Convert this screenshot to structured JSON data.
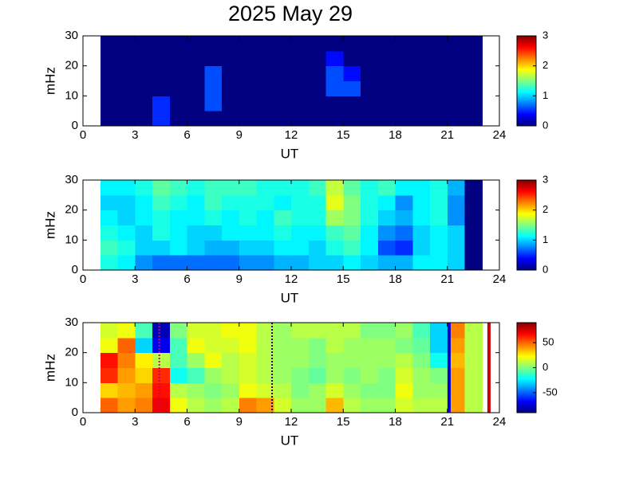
{
  "title": "2025 May 29",
  "chart_data": [
    {
      "type": "heatmap",
      "colormap": "jet",
      "xlabel": "UT",
      "ylabel": "mHz",
      "xlim": [
        0,
        24
      ],
      "xticks": [
        0,
        3,
        6,
        9,
        12,
        15,
        18,
        21,
        24
      ],
      "ylim": [
        0,
        30
      ],
      "yticks": [
        0,
        10,
        20,
        30
      ],
      "x_edges": [
        1,
        2,
        3,
        4,
        5,
        6,
        7,
        8,
        9,
        10,
        11,
        12,
        13,
        14,
        15,
        16,
        17,
        18,
        19,
        20,
        21,
        22,
        23
      ],
      "y_edges": [
        0,
        5,
        10,
        15,
        20,
        25,
        30
      ],
      "clim": [
        0,
        3
      ],
      "cticks": [
        0,
        1,
        2,
        3
      ],
      "values": [
        [
          0,
          0,
          0,
          0.5,
          0,
          0,
          0,
          0,
          0,
          0,
          0,
          0,
          0,
          0,
          0,
          0,
          0,
          0,
          0,
          0,
          0,
          0
        ],
        [
          0,
          0,
          0,
          0.5,
          0,
          0,
          0.6,
          0,
          0,
          0,
          0,
          0,
          0,
          0,
          0,
          0,
          0,
          0,
          0,
          0,
          0,
          0
        ],
        [
          0,
          0,
          0,
          0,
          0,
          0,
          0.6,
          0,
          0,
          0,
          0,
          0,
          0,
          0.6,
          0.6,
          0,
          0,
          0,
          0,
          0,
          0,
          0
        ],
        [
          0,
          0,
          0,
          0,
          0,
          0,
          0.6,
          0,
          0,
          0,
          0,
          0,
          0,
          0.6,
          0.4,
          0,
          0,
          0,
          0,
          0,
          0,
          0
        ],
        [
          0,
          0,
          0,
          0,
          0,
          0,
          0,
          0,
          0,
          0,
          0,
          0,
          0,
          0.4,
          0,
          0,
          0,
          0,
          0,
          0,
          0,
          0
        ],
        [
          0,
          0,
          0,
          0,
          0,
          0,
          0,
          0,
          0,
          0,
          0,
          0,
          0,
          0,
          0,
          0,
          0,
          0,
          0,
          0,
          0,
          0
        ]
      ]
    },
    {
      "type": "heatmap",
      "colormap": "jet",
      "xlabel": "UT",
      "ylabel": "mHz",
      "xlim": [
        0,
        24
      ],
      "xticks": [
        0,
        3,
        6,
        9,
        12,
        15,
        18,
        21,
        24
      ],
      "ylim": [
        0,
        30
      ],
      "yticks": [
        0,
        10,
        20,
        30
      ],
      "x_edges": [
        1,
        2,
        3,
        4,
        5,
        6,
        7,
        8,
        9,
        10,
        11,
        12,
        13,
        14,
        15,
        16,
        17,
        18,
        19,
        20,
        21,
        22,
        23
      ],
      "y_edges": [
        0,
        5,
        10,
        15,
        20,
        25,
        30
      ],
      "clim": [
        0,
        3
      ],
      "cticks": [
        0,
        1,
        2,
        3
      ],
      "values": [
        [
          1.2,
          1.1,
          0.8,
          0.7,
          0.7,
          0.7,
          0.7,
          0.7,
          0.8,
          0.8,
          0.9,
          0.9,
          1.0,
          1.0,
          1.1,
          1.0,
          0.9,
          0.9,
          1.1,
          1.1,
          1.0,
          0
        ],
        [
          1.3,
          1.2,
          1.0,
          1.0,
          1.1,
          1.0,
          0.9,
          0.9,
          1.0,
          1.0,
          1.1,
          1.1,
          1.0,
          1.2,
          1.3,
          1.1,
          0.6,
          0.5,
          1.0,
          1.1,
          1.0,
          0
        ],
        [
          1.2,
          1.1,
          1.0,
          1.2,
          1.1,
          1.0,
          1.0,
          1.1,
          1.1,
          1.1,
          1.2,
          1.1,
          1.1,
          1.3,
          1.4,
          1.1,
          0.8,
          0.7,
          1.0,
          1.1,
          1.0,
          0
        ],
        [
          1.1,
          1.0,
          1.1,
          1.2,
          1.1,
          1.1,
          1.2,
          1.1,
          1.2,
          1.1,
          1.3,
          1.2,
          1.2,
          1.6,
          1.5,
          1.2,
          1.0,
          0.9,
          1.1,
          1.2,
          0.8,
          0
        ],
        [
          1.0,
          1.0,
          1.1,
          1.3,
          1.2,
          1.1,
          1.3,
          1.2,
          1.2,
          1.2,
          1.1,
          1.2,
          1.2,
          1.8,
          1.5,
          1.2,
          1.1,
          0.8,
          1.1,
          1.2,
          0.8,
          0
        ],
        [
          1.1,
          1.1,
          1.2,
          1.4,
          1.3,
          1.2,
          1.3,
          1.3,
          1.3,
          1.2,
          1.2,
          1.2,
          1.3,
          1.7,
          1.4,
          1.2,
          1.3,
          1.1,
          1.1,
          1.2,
          0.9,
          0
        ]
      ]
    },
    {
      "type": "heatmap",
      "colormap": "jet",
      "xlabel": "UT",
      "ylabel": "mHz",
      "xlim": [
        0,
        24
      ],
      "xticks": [
        0,
        3,
        6,
        9,
        12,
        15,
        18,
        21,
        24
      ],
      "ylim": [
        0,
        30
      ],
      "yticks": [
        0,
        10,
        20,
        30
      ],
      "x_edges": [
        1,
        2,
        3,
        4,
        5,
        6,
        7,
        8,
        9,
        10,
        11,
        12,
        13,
        14,
        15,
        16,
        17,
        18,
        19,
        20,
        21,
        22,
        23
      ],
      "y_edges": [
        0,
        5,
        10,
        15,
        20,
        25,
        30
      ],
      "clim": [
        -90,
        90
      ],
      "cticks": [
        -50,
        0,
        50
      ],
      "values": [
        [
          50,
          40,
          45,
          70,
          20,
          10,
          5,
          10,
          45,
          40,
          15,
          5,
          5,
          35,
          10,
          5,
          5,
          15,
          10,
          10,
          40,
          10
        ],
        [
          30,
          35,
          40,
          65,
          10,
          5,
          0,
          5,
          20,
          15,
          10,
          0,
          5,
          15,
          5,
          0,
          0,
          20,
          5,
          5,
          40,
          10
        ],
        [
          60,
          40,
          30,
          60,
          -20,
          -10,
          5,
          10,
          15,
          10,
          5,
          0,
          -5,
          5,
          0,
          5,
          0,
          15,
          5,
          0,
          40,
          10
        ],
        [
          65,
          45,
          25,
          10,
          -10,
          5,
          20,
          10,
          15,
          10,
          5,
          5,
          0,
          5,
          5,
          5,
          5,
          10,
          0,
          -20,
          35,
          10
        ],
        [
          20,
          50,
          -30,
          -70,
          -10,
          20,
          15,
          15,
          20,
          10,
          5,
          5,
          0,
          10,
          5,
          5,
          5,
          0,
          -5,
          -30,
          40,
          10
        ],
        [
          15,
          20,
          -10,
          -80,
          0,
          15,
          15,
          20,
          20,
          10,
          5,
          10,
          10,
          10,
          10,
          0,
          0,
          5,
          -10,
          -30,
          45,
          10
        ]
      ],
      "vlines": [
        {
          "x": 4.4,
          "color": "#cc0066",
          "style": "dotted"
        },
        {
          "x": 10.9,
          "color": "#000080",
          "style": "dotted"
        },
        {
          "x": 21.1,
          "color": "#0000cc",
          "style": "solid"
        },
        {
          "x": 23.4,
          "color": "#cc0000",
          "style": "solid"
        }
      ]
    }
  ]
}
